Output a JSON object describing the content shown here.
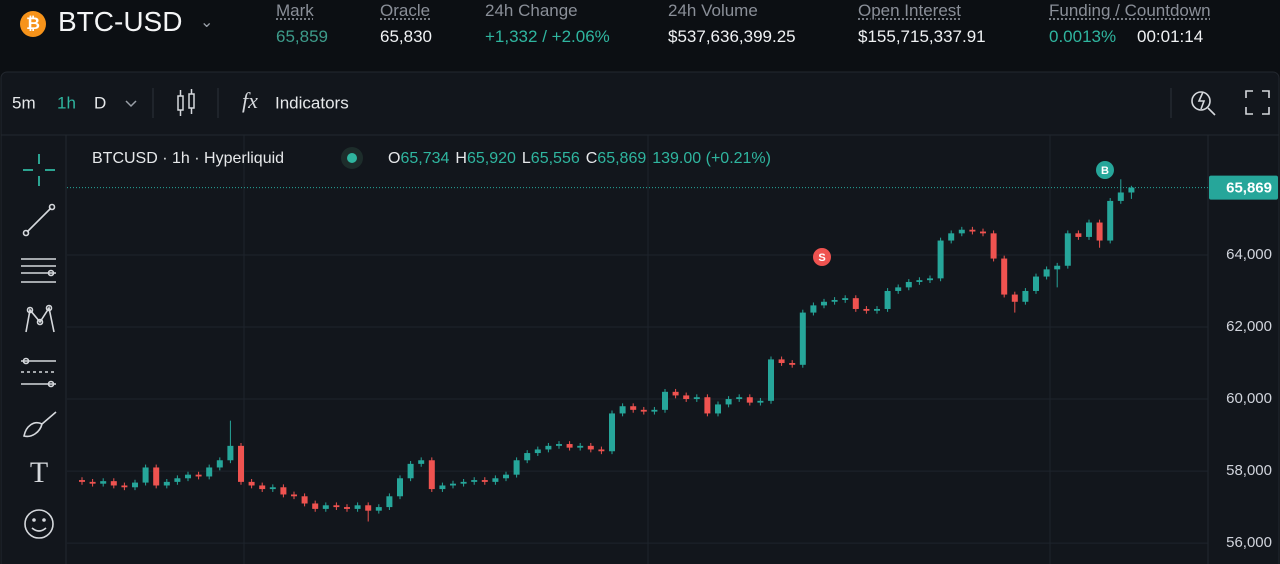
{
  "header": {
    "symbol": "BTC-USD",
    "stats": [
      {
        "label": "Mark",
        "value": "65,859"
      },
      {
        "label": "Oracle",
        "value": "65,830"
      },
      {
        "label": "24h Change",
        "value": "+1,332 / +2.06%"
      },
      {
        "label": "24h Volume",
        "value": "$537,636,399.25"
      },
      {
        "label": "Open Interest",
        "value": "$155,715,337.91"
      }
    ],
    "funding": {
      "label": "Funding / Countdown",
      "rate": "0.0013%",
      "countdown": "00:01:14"
    }
  },
  "toolbar": {
    "intervals": [
      "5m",
      "1h",
      "D"
    ],
    "indicators": "Indicators"
  },
  "chart_data": {
    "type": "candlestick",
    "legend": {
      "source": "BTCUSD · 1h · Hyperliquid",
      "ohlc": [
        {
          "key": "O",
          "value": "65,734"
        },
        {
          "key": "H",
          "value": "65,920"
        },
        {
          "key": "L",
          "value": "65,556"
        },
        {
          "key": "C",
          "value": "65,869"
        }
      ],
      "change": "139.00 (+0.21%)"
    },
    "markers": [
      "S",
      "B"
    ],
    "up_color": "#26a69a",
    "down_color": "#ef5350",
    "ylim": [
      55420,
      67330
    ],
    "yticks": [
      {
        "value": 56000,
        "label": "56,000"
      },
      {
        "value": 58000,
        "label": "58,000"
      },
      {
        "value": 60000,
        "label": "60,000"
      },
      {
        "value": 62000,
        "label": "62,000"
      },
      {
        "value": 64000,
        "label": "64,000"
      }
    ],
    "grid": true,
    "last_price": {
      "value": 65869,
      "label": "65,869"
    },
    "categories": [
      null,
      null,
      null,
      null,
      null,
      null,
      null,
      null,
      null,
      null,
      null,
      null,
      null,
      null,
      null,
      null,
      null,
      null,
      null,
      null,
      null,
      null,
      null,
      null,
      null,
      null,
      null,
      null,
      null,
      null,
      null,
      null,
      null,
      null,
      null,
      null,
      null,
      null,
      null,
      null,
      null,
      null,
      null,
      null,
      null,
      null,
      null,
      null,
      null,
      null,
      null,
      null,
      null,
      null,
      null,
      null,
      null,
      null,
      null,
      null,
      null,
      null,
      null,
      null,
      null,
      null,
      null,
      null,
      null,
      null,
      null,
      null,
      null,
      null,
      null,
      null,
      null,
      null,
      null,
      null,
      null,
      null,
      null,
      null,
      null,
      null,
      null,
      null,
      null,
      null,
      null,
      null,
      null,
      null,
      null,
      null,
      null,
      null,
      null,
      null
    ],
    "candles": [
      [
        57750,
        57830,
        57620,
        57700
      ],
      [
        57700,
        57780,
        57570,
        57650
      ],
      [
        57650,
        57800,
        57570,
        57720
      ],
      [
        57720,
        57800,
        57520,
        57600
      ],
      [
        57600,
        57680,
        57470,
        57550
      ],
      [
        57550,
        57760,
        57470,
        57680
      ],
      [
        57680,
        58180,
        57600,
        58100
      ],
      [
        58100,
        58180,
        57520,
        57600
      ],
      [
        57600,
        57780,
        57520,
        57700
      ],
      [
        57700,
        57880,
        57620,
        57800
      ],
      [
        57800,
        57980,
        57720,
        57900
      ],
      [
        57900,
        57980,
        57770,
        57850
      ],
      [
        57850,
        58180,
        57770,
        58100
      ],
      [
        58100,
        58380,
        58020,
        58300
      ],
      [
        58300,
        59400,
        58220,
        58700
      ],
      [
        58700,
        58780,
        57620,
        57700
      ],
      [
        57700,
        57780,
        57520,
        57600
      ],
      [
        57600,
        57680,
        57420,
        57500
      ],
      [
        57500,
        57630,
        57420,
        57550
      ],
      [
        57550,
        57630,
        57270,
        57350
      ],
      [
        57350,
        57430,
        57220,
        57300
      ],
      [
        57300,
        57380,
        57020,
        57100
      ],
      [
        57100,
        57180,
        56870,
        56950
      ],
      [
        56950,
        57130,
        56870,
        57050
      ],
      [
        57050,
        57130,
        56920,
        57000
      ],
      [
        57000,
        57080,
        56870,
        56950
      ],
      [
        56950,
        57130,
        56870,
        57050
      ],
      [
        57050,
        57130,
        56600,
        56900
      ],
      [
        56900,
        57080,
        56820,
        57000
      ],
      [
        57000,
        57380,
        56920,
        57300
      ],
      [
        57300,
        57880,
        57220,
        57800
      ],
      [
        57800,
        58280,
        57720,
        58200
      ],
      [
        58200,
        58380,
        58120,
        58300
      ],
      [
        58300,
        58380,
        57420,
        57500
      ],
      [
        57500,
        57680,
        57420,
        57600
      ],
      [
        57600,
        57730,
        57520,
        57650
      ],
      [
        57650,
        57780,
        57570,
        57700
      ],
      [
        57700,
        57830,
        57620,
        57750
      ],
      [
        57750,
        57830,
        57620,
        57700
      ],
      [
        57700,
        57880,
        57620,
        57800
      ],
      [
        57800,
        57980,
        57720,
        57900
      ],
      [
        57900,
        58380,
        57820,
        58300
      ],
      [
        58300,
        58580,
        58220,
        58500
      ],
      [
        58500,
        58680,
        58420,
        58600
      ],
      [
        58600,
        58780,
        58520,
        58700
      ],
      [
        58700,
        58830,
        58620,
        58750
      ],
      [
        58750,
        58830,
        58570,
        58650
      ],
      [
        58650,
        58780,
        58570,
        58700
      ],
      [
        58700,
        58780,
        58520,
        58600
      ],
      [
        58600,
        58680,
        58470,
        58550
      ],
      [
        58550,
        59680,
        58470,
        59600
      ],
      [
        59600,
        59880,
        59520,
        59800
      ],
      [
        59800,
        59880,
        59620,
        59700
      ],
      [
        59700,
        59780,
        59570,
        59650
      ],
      [
        59650,
        59780,
        59570,
        59700
      ],
      [
        59700,
        60280,
        59620,
        60200
      ],
      [
        60200,
        60280,
        60020,
        60100
      ],
      [
        60100,
        60180,
        59920,
        60000
      ],
      [
        60000,
        60130,
        59920,
        60050
      ],
      [
        60050,
        60130,
        59520,
        59600
      ],
      [
        59600,
        59930,
        59520,
        59850
      ],
      [
        59850,
        60080,
        59770,
        60000
      ],
      [
        60000,
        60130,
        59920,
        60050
      ],
      [
        60050,
        60130,
        59820,
        59900
      ],
      [
        59900,
        60030,
        59820,
        59950
      ],
      [
        59950,
        61180,
        59870,
        61100
      ],
      [
        61100,
        61180,
        60920,
        61000
      ],
      [
        61000,
        61080,
        60870,
        60950
      ],
      [
        60950,
        62480,
        60870,
        62400
      ],
      [
        62400,
        62680,
        62320,
        62600
      ],
      [
        62600,
        62780,
        62520,
        62700
      ],
      [
        62700,
        62830,
        62620,
        62750
      ],
      [
        62750,
        62880,
        62670,
        62800
      ],
      [
        62800,
        62880,
        62420,
        62500
      ],
      [
        62500,
        62580,
        62370,
        62450
      ],
      [
        62450,
        62580,
        62370,
        62500
      ],
      [
        62500,
        63080,
        62420,
        63000
      ],
      [
        63000,
        63180,
        62920,
        63100
      ],
      [
        63100,
        63330,
        63020,
        63250
      ],
      [
        63250,
        63380,
        63170,
        63300
      ],
      [
        63300,
        63430,
        63220,
        63350
      ],
      [
        63350,
        64480,
        63270,
        64400
      ],
      [
        64400,
        64680,
        64320,
        64600
      ],
      [
        64600,
        64780,
        64520,
        64700
      ],
      [
        64700,
        64780,
        64570,
        64650
      ],
      [
        64650,
        64730,
        64520,
        64600
      ],
      [
        64600,
        64680,
        63820,
        63900
      ],
      [
        63900,
        63980,
        62820,
        62900
      ],
      [
        62900,
        62980,
        62400,
        62700
      ],
      [
        62700,
        63080,
        62620,
        63000
      ],
      [
        63000,
        63480,
        62920,
        63400
      ],
      [
        63400,
        63680,
        63320,
        63600
      ],
      [
        63600,
        63780,
        63100,
        63700
      ],
      [
        63700,
        64680,
        63620,
        64600
      ],
      [
        64600,
        64680,
        64420,
        64500
      ],
      [
        64500,
        64980,
        64420,
        64900
      ],
      [
        64900,
        64980,
        64200,
        64400
      ],
      [
        64400,
        65580,
        64320,
        65500
      ],
      [
        65500,
        66100,
        65420,
        65734
      ],
      [
        65734,
        65920,
        65556,
        65869
      ]
    ]
  }
}
